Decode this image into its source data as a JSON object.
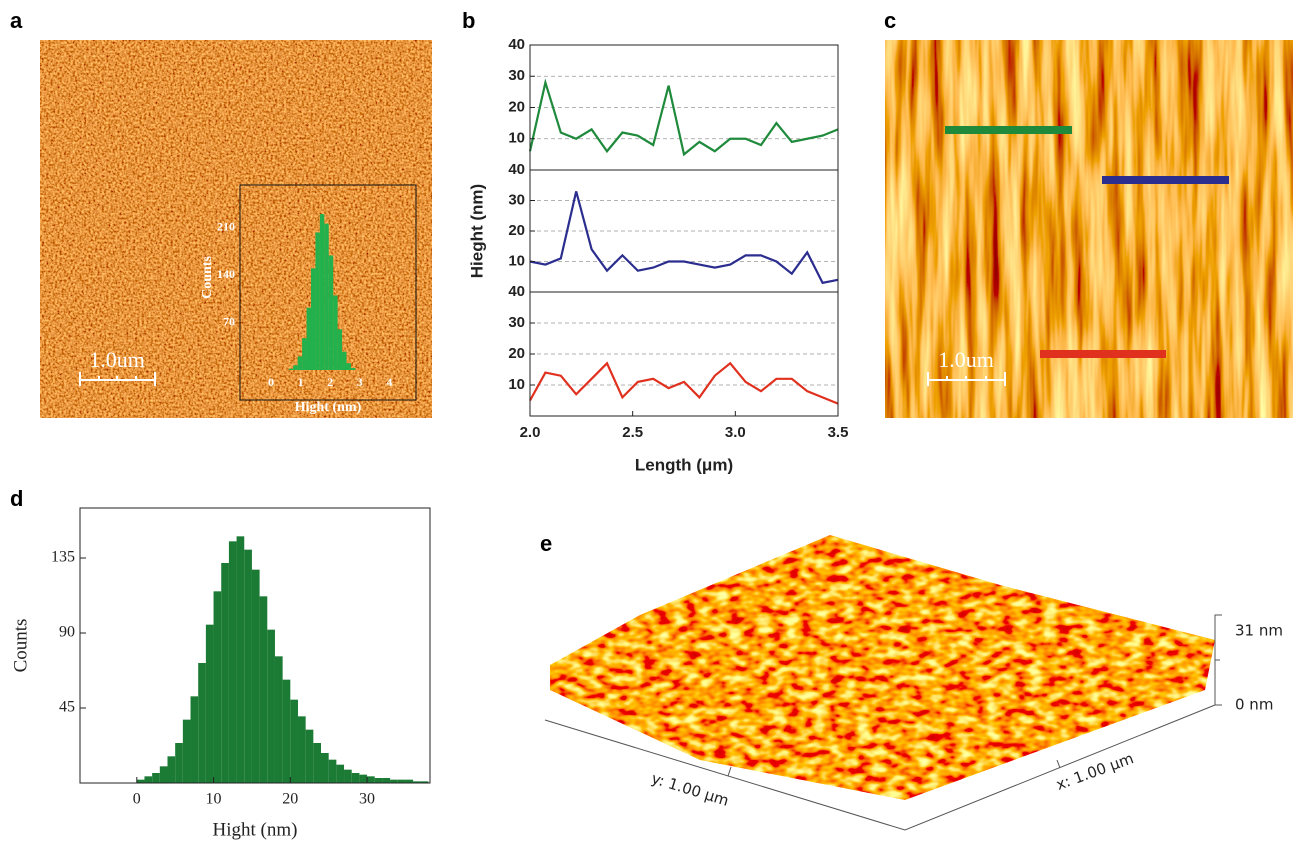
{
  "panels": [
    "a",
    "b",
    "c",
    "d",
    "e"
  ],
  "chart_data": [
    {
      "type": "histogram",
      "xlabel": "Hight (nm)",
      "ylabel": "Counts",
      "color": "#22b14c",
      "bins": [
        0.6,
        0.75,
        0.9,
        1.05,
        1.2,
        1.35,
        1.5,
        1.65,
        1.8,
        1.95,
        2.1,
        2.25,
        2.4,
        2.55,
        2.7,
        2.85
      ],
      "counts": [
        2,
        7,
        20,
        47,
        92,
        150,
        203,
        230,
        216,
        169,
        110,
        60,
        27,
        10,
        3
      ],
      "xlim": [
        -1.05,
        4.9
      ],
      "xticks": [
        0,
        1,
        2,
        3,
        4
      ],
      "ylim": [
        0,
        273
      ],
      "yticks": [
        70,
        140,
        210
      ]
    },
    {
      "type": "line",
      "color": "#1f8a3c",
      "grid": true,
      "x": [
        2.0,
        2.075,
        2.15,
        2.225,
        2.3,
        2.375,
        2.45,
        2.525,
        2.6,
        2.675,
        2.75,
        2.825,
        2.9,
        2.975,
        3.05,
        3.125,
        3.2,
        3.275,
        3.35,
        3.425,
        3.5
      ],
      "values": [
        6,
        28,
        12,
        10,
        13,
        6,
        12,
        11,
        8,
        27,
        5,
        9,
        6,
        10,
        10,
        8,
        15,
        9,
        10,
        11,
        13
      ],
      "xlim": [
        2.0,
        3.5
      ],
      "ylim": [
        0,
        40
      ],
      "yticks": [
        10,
        20,
        30,
        40
      ]
    },
    {
      "type": "line",
      "color": "#2b2d8f",
      "grid": true,
      "ylabel": "Hieght (nm)",
      "x": [
        2.0,
        2.075,
        2.15,
        2.225,
        2.3,
        2.375,
        2.45,
        2.525,
        2.6,
        2.675,
        2.75,
        2.825,
        2.9,
        2.975,
        3.05,
        3.125,
        3.2,
        3.275,
        3.35,
        3.425,
        3.5
      ],
      "values": [
        10,
        9,
        11,
        33,
        14,
        7,
        12,
        7,
        8,
        10,
        10,
        9,
        8,
        9,
        12,
        12,
        10,
        6,
        13,
        3,
        4
      ],
      "xlim": [
        2.0,
        3.5
      ],
      "ylim": [
        0,
        40
      ],
      "yticks": [
        10,
        20,
        30,
        40
      ]
    },
    {
      "type": "line",
      "color": "#e0301e",
      "grid": true,
      "xlabel": "Length (μm)",
      "x": [
        2.0,
        2.075,
        2.15,
        2.225,
        2.3,
        2.375,
        2.45,
        2.525,
        2.6,
        2.675,
        2.75,
        2.825,
        2.9,
        2.975,
        3.05,
        3.125,
        3.2,
        3.275,
        3.35,
        3.425,
        3.5
      ],
      "values": [
        5,
        14,
        13,
        7,
        12,
        17,
        6,
        11,
        12,
        9,
        11,
        6,
        13,
        17,
        11,
        8,
        12,
        12,
        8,
        6,
        4
      ],
      "xlim": [
        2.0,
        3.5
      ],
      "xticks": [
        {
          "value": 2.0,
          "label": "2.0"
        },
        2.5,
        {
          "value": 3.0,
          "label": "3.0"
        },
        3.5
      ],
      "ylim": [
        0,
        40
      ],
      "yticks": [
        10,
        20,
        30,
        40
      ]
    },
    {
      "type": "histogram",
      "xlabel": "Hight (nm)",
      "ylabel": "Counts",
      "color": "#1b7a34",
      "bins": [
        0,
        1,
        2,
        3,
        4,
        5,
        6,
        7,
        8,
        9,
        10,
        11,
        12,
        13,
        14,
        15,
        16,
        17,
        18,
        19,
        20,
        21,
        22,
        23,
        24,
        25,
        26,
        27,
        28,
        29,
        30,
        31,
        32,
        33,
        34,
        35,
        36,
        37,
        38
      ],
      "counts": [
        2,
        4,
        6,
        10,
        16,
        24,
        38,
        52,
        72,
        95,
        115,
        132,
        145,
        148,
        140,
        128,
        112,
        92,
        76,
        62,
        50,
        40,
        32,
        24,
        18,
        14,
        11,
        8,
        6,
        5,
        4,
        3,
        3,
        2,
        2,
        2,
        1,
        1
      ],
      "xlim": [
        -7.4,
        38.2
      ],
      "xticks": [
        0,
        10,
        20,
        30
      ],
      "ylim": [
        0,
        165
      ],
      "yticks": [
        45,
        90,
        135
      ]
    }
  ],
  "images": {
    "a": {
      "scale_bar": "1.0um"
    },
    "c": {
      "scale_bar": "1.0um"
    },
    "e": {
      "z_labels": [
        "31 nm",
        "0 nm"
      ],
      "x_label": "x: 1.00 μm",
      "y_label": "y: 1.00 μm"
    }
  }
}
